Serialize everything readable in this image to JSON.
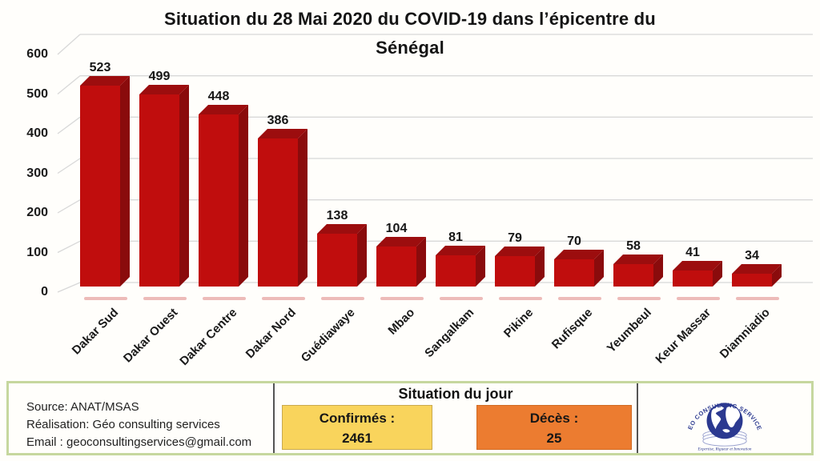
{
  "header": {
    "line1": "Situation du 28 Mai 2020 du COVID-19 dans l’épicentre du",
    "line2": "Sénégal"
  },
  "chart_data": {
    "type": "bar",
    "title": "Situation du 28 Mai 2020 du COVID-19 dans l’épicentre du Sénégal",
    "categories": [
      "Dakar Sud",
      "Dakar Ouest",
      "Dakar Centre",
      "Dakar Nord",
      "Guédiawaye",
      "Mbao",
      "Sangalkam",
      "Pikine",
      "Rufisque",
      "Yeumbeul",
      "Keur Massar",
      "Diamniadio"
    ],
    "values": [
      523,
      499,
      448,
      386,
      138,
      104,
      81,
      79,
      70,
      58,
      41,
      34
    ],
    "xlabel": "",
    "ylabel": "",
    "ylim": [
      0,
      600
    ],
    "ytick_step": 100,
    "grid": true,
    "legend": false,
    "style": "3d-red-bars"
  },
  "footer": {
    "source": "Source: ANAT/MSAS",
    "realisation": "Réalisation: Géo consulting services",
    "email": "Email : geoconsultingservices@gmail.com",
    "situation_header": "Situation du jour",
    "confirmed": {
      "label": "Confirmés :",
      "value": "2461"
    },
    "deaths": {
      "label": "Décès :",
      "value": "25"
    }
  },
  "logo": {
    "arc_text": "GEO CONSULTING SERVICES",
    "tagline": "Expertise, Rigueur et Innovation"
  },
  "colors": {
    "bar_front": "#c00d0d",
    "bar_side": "#8a0b0c",
    "bar_top": "#9c0d0e",
    "grid": "#d8d8d8",
    "confirmed_bg": "#f9d45c",
    "deaths_bg": "#ec7c30",
    "logo_navy": "#2b3990",
    "table_border": "#c6d79e"
  }
}
